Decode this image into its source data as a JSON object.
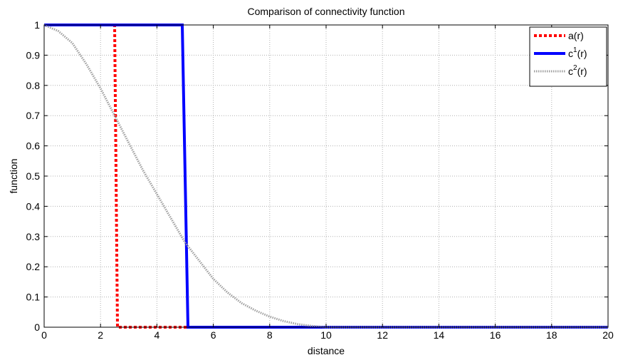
{
  "chart_data": {
    "type": "line",
    "title": "Comparison of connectivity function",
    "xlabel": "distance",
    "ylabel": "function",
    "xlim": [
      0,
      20
    ],
    "ylim": [
      0,
      1
    ],
    "xticks": [
      0,
      2,
      4,
      6,
      8,
      10,
      12,
      14,
      16,
      18,
      20
    ],
    "yticks": [
      0,
      0.1,
      0.2,
      0.3,
      0.4,
      0.5,
      0.6,
      0.7,
      0.8,
      0.9,
      1
    ],
    "grid": true,
    "legend_position": "top-right",
    "series": [
      {
        "name": "a(r)",
        "legend_base": "a(r)",
        "color": "#ff0000",
        "style": "dotted",
        "x": [
          0,
          2.5,
          2.6,
          5,
          20
        ],
        "y": [
          1,
          1,
          0,
          0,
          0
        ]
      },
      {
        "name": "c1(r)",
        "legend_base": "c",
        "legend_sup": "1",
        "legend_tail": "(r)",
        "color": "#0000ff",
        "style": "solid",
        "x": [
          0,
          4.9,
          5.1,
          20
        ],
        "y": [
          1,
          1,
          0,
          0
        ]
      },
      {
        "name": "c2(r)",
        "legend_base": "c",
        "legend_sup": "2",
        "legend_tail": "(r)",
        "color": "#a0a0a0",
        "style": "dotted",
        "x": [
          0,
          0.5,
          1,
          1.5,
          2,
          2.5,
          3,
          3.5,
          4,
          4.5,
          5,
          5.5,
          6,
          6.5,
          7,
          7.5,
          8,
          8.5,
          9,
          9.5,
          10,
          11,
          12,
          14,
          16,
          18,
          20
        ],
        "y": [
          1,
          0.98,
          0.94,
          0.87,
          0.79,
          0.7,
          0.61,
          0.52,
          0.44,
          0.36,
          0.28,
          0.22,
          0.16,
          0.115,
          0.08,
          0.055,
          0.035,
          0.02,
          0.01,
          0.004,
          0,
          0,
          0,
          0,
          0,
          0,
          0
        ]
      }
    ]
  }
}
